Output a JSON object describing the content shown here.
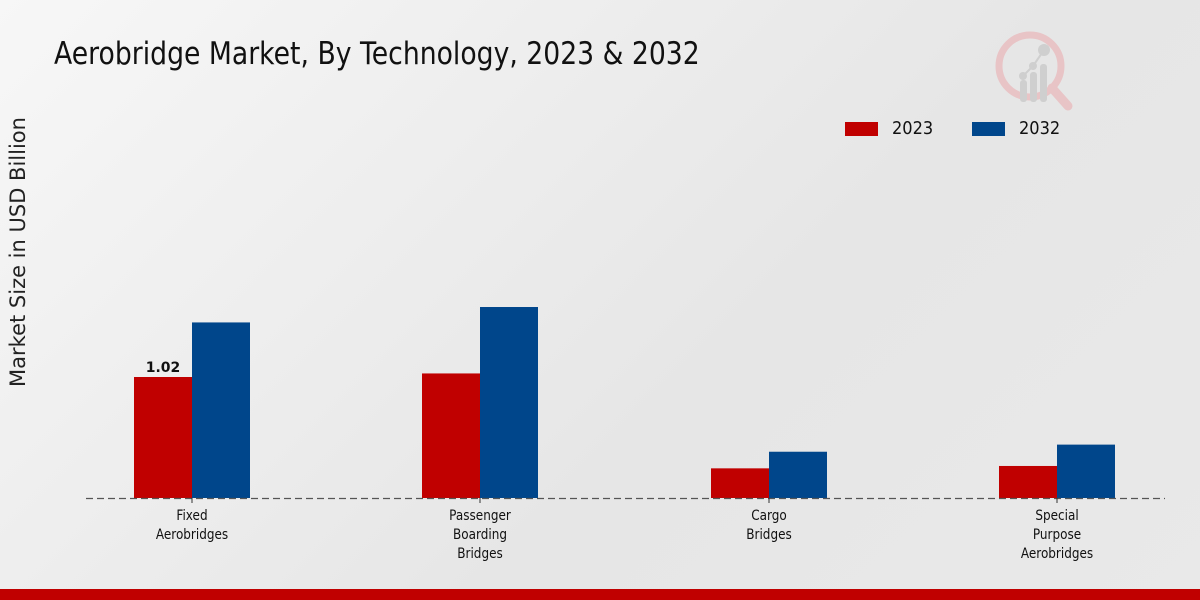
{
  "colors": {
    "series_2023": "#c00000",
    "series_2032": "#00468b",
    "bottom_bar": "#c00000"
  },
  "logo": {
    "icon": "analytics-magnifier-logo-icon"
  },
  "chart_data": {
    "type": "bar",
    "title": "Aerobridge Market, By Technology, 2023 & 2032",
    "xlabel": "",
    "ylabel": "Market Size in USD Billion",
    "ylim": [
      0,
      2.2
    ],
    "grid": false,
    "legend_position": "top-right",
    "categories": [
      [
        "Fixed",
        "Aerobridges"
      ],
      [
        "Passenger",
        "Boarding",
        "Bridges"
      ],
      [
        "Cargo",
        "Bridges"
      ],
      [
        "Special",
        "Purpose",
        "Aerobridges"
      ]
    ],
    "series": [
      {
        "name": "2023",
        "values": [
          1.02,
          1.05,
          0.25,
          0.27
        ]
      },
      {
        "name": "2032",
        "values": [
          1.48,
          1.61,
          0.39,
          0.45
        ]
      }
    ],
    "data_labels": [
      {
        "series": 0,
        "index": 0,
        "text": "1.02"
      }
    ]
  }
}
